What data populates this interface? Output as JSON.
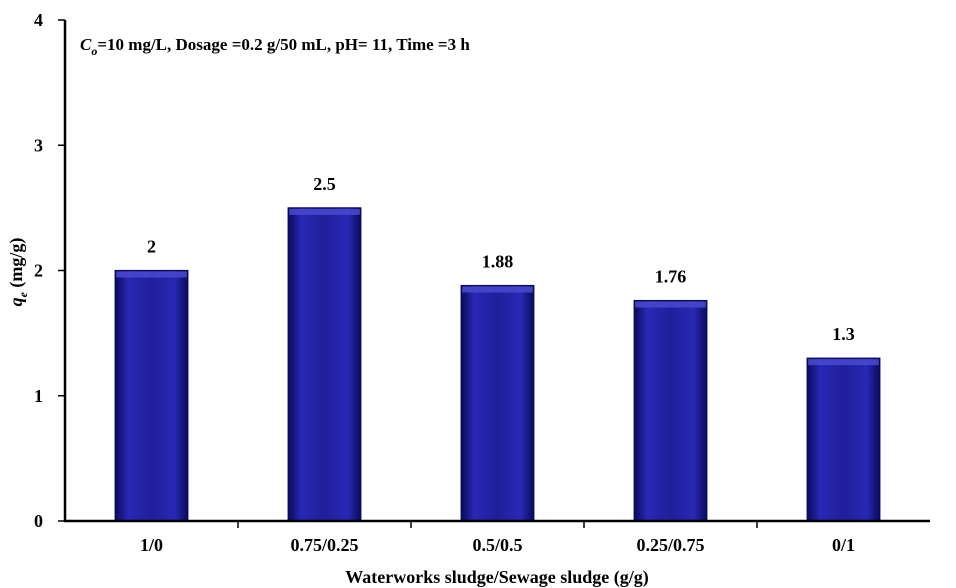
{
  "chart_data": {
    "type": "bar",
    "annotation": {
      "symbol": "C",
      "subscript": "o",
      "text": "=10 mg/L, Dosage =0.2 g/50 mL, pH= 11, Time =3 h"
    },
    "xlabel": "Waterworks sludge/Sewage sludge (g/g)",
    "ylabel": {
      "symbol": "q",
      "subscript": "e",
      "unit": " (mg/g)"
    },
    "categories": [
      "1/0",
      "0.75/0.25",
      "0.5/0.5",
      "0.25/0.75",
      "0/1"
    ],
    "values": [
      2,
      2.5,
      1.88,
      1.76,
      1.3
    ],
    "data_labels": [
      "2",
      "2.5",
      "1.88",
      "1.76",
      "1.3"
    ],
    "ylim": [
      0,
      4
    ],
    "yticks": [
      0,
      1,
      2,
      3,
      4
    ],
    "grid": false,
    "legend": "none",
    "colors": {
      "bar_fill": "#1f1f9c",
      "bar_dark": "#0a0a5c",
      "bar_light": "#4a4ad0",
      "axis": "#000000"
    }
  }
}
